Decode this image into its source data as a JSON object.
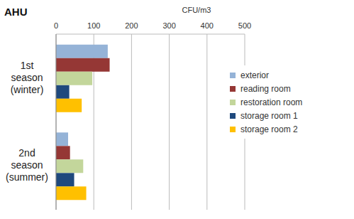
{
  "chart_data": {
    "type": "bar",
    "title": "AHU",
    "x_label": "CFU/m3",
    "orientation": "horizontal",
    "categories": [
      "1st season (winter)",
      "2nd season (summer)"
    ],
    "series": [
      {
        "name": "exterior",
        "color": "#95b3d7",
        "values": [
          137,
          32
        ]
      },
      {
        "name": "reading room",
        "color": "#953735",
        "values": [
          142,
          37
        ]
      },
      {
        "name": "restoration room",
        "color": "#c3d69b",
        "values": [
          96,
          72
        ]
      },
      {
        "name": "storage room 1",
        "color": "#1f497d",
        "values": [
          35,
          48
        ]
      },
      {
        "name": "storage room 2",
        "color": "#ffc000",
        "values": [
          68,
          80
        ]
      }
    ],
    "xlim": [
      0,
      500
    ],
    "xticks": [
      0,
      100,
      200,
      300,
      400,
      500
    ],
    "grid": true,
    "legend": "right"
  }
}
